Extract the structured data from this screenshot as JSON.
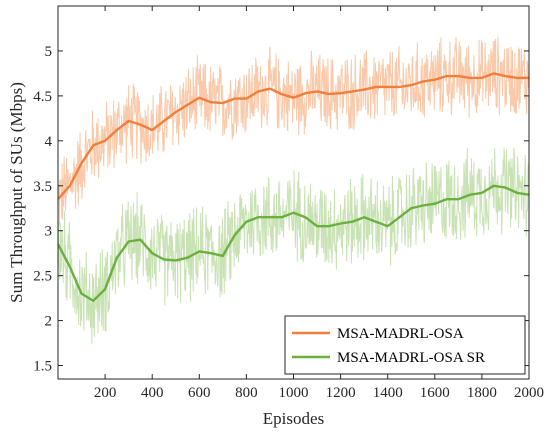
{
  "chart_data": {
    "type": "line",
    "xlabel": "Episodes",
    "ylabel": "Sum Throughput of SUs (Mbps)",
    "xlim": [
      0,
      2000
    ],
    "ylim": [
      1.35,
      5.5
    ],
    "x_ticks": [
      200,
      400,
      600,
      800,
      1000,
      1200,
      1400,
      1600,
      1800,
      2000
    ],
    "y_ticks": [
      1.5,
      2,
      2.5,
      3,
      3.5,
      4,
      4.5,
      5
    ],
    "grid": false,
    "legend_position": "bottom-right",
    "colors": {
      "orange": "#f07f3c",
      "orange_raw": "#f9c9a9",
      "green": "#6ab03f",
      "green_raw": "#c8e2b4"
    },
    "series": [
      {
        "name": "MSA-MADRL-OSA",
        "color": "#f07f3c",
        "raw_color": "#f9c9a9",
        "x": [
          0,
          50,
          100,
          150,
          200,
          250,
          300,
          350,
          400,
          450,
          500,
          550,
          600,
          650,
          700,
          750,
          800,
          850,
          900,
          950,
          1000,
          1050,
          1100,
          1150,
          1200,
          1250,
          1300,
          1350,
          1400,
          1450,
          1500,
          1550,
          1600,
          1650,
          1700,
          1750,
          1800,
          1850,
          1900,
          1950,
          2000
        ],
        "values": [
          3.35,
          3.5,
          3.75,
          3.95,
          4.0,
          4.12,
          4.22,
          4.18,
          4.12,
          4.22,
          4.32,
          4.4,
          4.48,
          4.43,
          4.42,
          4.47,
          4.47,
          4.55,
          4.58,
          4.52,
          4.48,
          4.53,
          4.55,
          4.52,
          4.53,
          4.55,
          4.57,
          4.6,
          4.6,
          4.6,
          4.62,
          4.66,
          4.68,
          4.72,
          4.72,
          4.7,
          4.7,
          4.75,
          4.72,
          4.7,
          4.7
        ]
      },
      {
        "name": "MSA-MADRL-OSA SR",
        "color": "#6ab03f",
        "raw_color": "#c8e2b4",
        "x": [
          0,
          50,
          100,
          150,
          200,
          250,
          300,
          350,
          400,
          450,
          500,
          550,
          600,
          650,
          700,
          750,
          800,
          850,
          900,
          950,
          1000,
          1050,
          1100,
          1150,
          1200,
          1250,
          1300,
          1350,
          1400,
          1450,
          1500,
          1550,
          1600,
          1650,
          1700,
          1750,
          1800,
          1850,
          1900,
          1950,
          2000
        ],
        "values": [
          2.85,
          2.6,
          2.3,
          2.22,
          2.35,
          2.7,
          2.88,
          2.9,
          2.75,
          2.68,
          2.67,
          2.7,
          2.77,
          2.75,
          2.72,
          2.95,
          3.1,
          3.15,
          3.15,
          3.15,
          3.2,
          3.15,
          3.05,
          3.05,
          3.08,
          3.1,
          3.15,
          3.1,
          3.05,
          3.15,
          3.25,
          3.28,
          3.3,
          3.35,
          3.35,
          3.4,
          3.42,
          3.5,
          3.48,
          3.42,
          3.4
        ]
      }
    ]
  }
}
